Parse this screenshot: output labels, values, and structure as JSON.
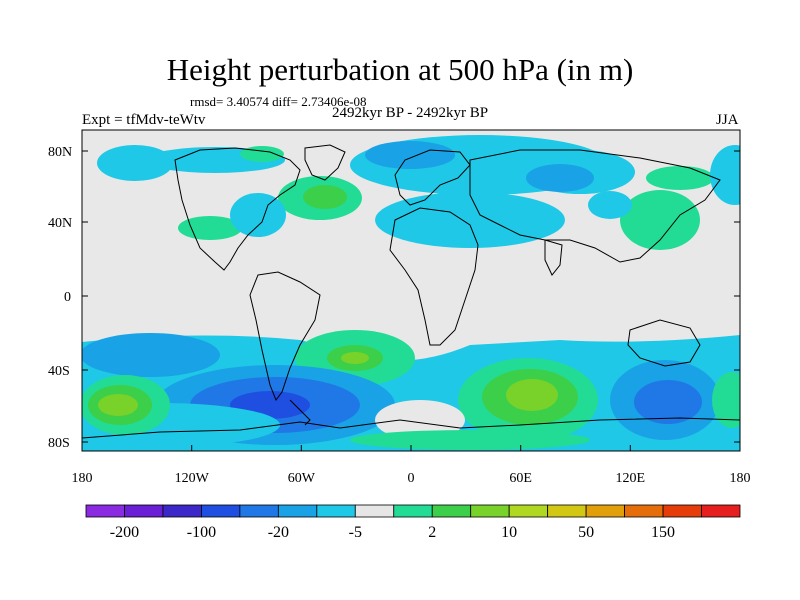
{
  "title": "Height perturbation at 500 hPa (in m)",
  "stats": "rmsd= 3.40574 diff= 2.73406e-08",
  "period": "2492kyr BP - 2492kyr BP",
  "experiment": "Expt = tfMdv-teWtv",
  "season": "JJA",
  "map": {
    "lat_range": [
      -90,
      90
    ],
    "lon_range": [
      -180,
      180
    ],
    "lat_ticks": [
      "80N",
      "40N",
      "0",
      "40S",
      "80S"
    ],
    "lon_ticks": [
      "180",
      "120W",
      "60W",
      "0",
      "60E",
      "120E",
      "180"
    ],
    "background_color": "#e8e8e8",
    "coastline_color": "#000000"
  },
  "colorbar": {
    "colors": [
      "#8a2be2",
      "#6a1fd6",
      "#3c28c8",
      "#1f4fe0",
      "#1f78e6",
      "#1aa2e6",
      "#1ec8e6",
      "#e6e6e6",
      "#22dc96",
      "#3ccf4a",
      "#78d22a",
      "#b0d820",
      "#d2c814",
      "#e1a00a",
      "#e66e0a",
      "#e63c0a",
      "#e61e1e"
    ],
    "labels": [
      "-200",
      "-100",
      "-20",
      "-5",
      "2",
      "10",
      "50",
      "150"
    ],
    "label_boundaries": [
      1,
      3,
      5,
      7,
      9,
      11,
      13,
      15
    ]
  },
  "icons": [
    "coastline-map"
  ]
}
